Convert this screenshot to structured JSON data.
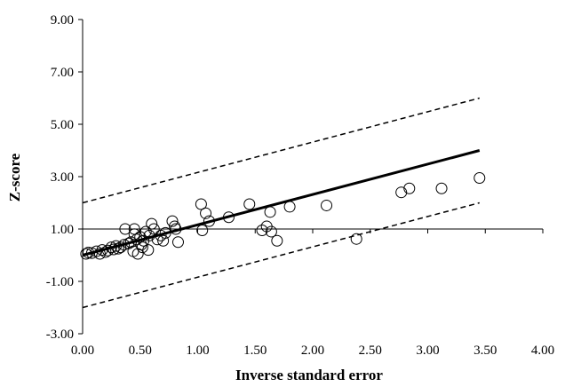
{
  "chart_data": {
    "type": "scatter",
    "xlabel": "Inverse standard error",
    "ylabel": "Z-score",
    "xlim": [
      0,
      4
    ],
    "ylim": [
      -3,
      9
    ],
    "x_ticks": [
      "0.00",
      "0.50",
      "1.00",
      "1.50",
      "2.00",
      "2.50",
      "3.00",
      "3.50",
      "4.00"
    ],
    "y_ticks": [
      "-3.00",
      "-1.00",
      "1.00",
      "3.00",
      "5.00",
      "7.00",
      "9.00"
    ],
    "x_tick_values": [
      0,
      0.5,
      1,
      1.5,
      2,
      2.5,
      3,
      3.5,
      4
    ],
    "y_tick_values": [
      -3,
      -1,
      1,
      3,
      5,
      7,
      9
    ],
    "x_axis_crosses_y_at": 1.0,
    "grid": false,
    "regression_line": {
      "style": "solid",
      "x": [
        0,
        3.45
      ],
      "y": [
        0,
        4.0
      ]
    },
    "upper_bound": {
      "style": "dashed",
      "x": [
        0,
        3.45
      ],
      "y": [
        2.0,
        6.0
      ]
    },
    "lower_bound": {
      "style": "dashed",
      "x": [
        0,
        3.45
      ],
      "y": [
        -2.0,
        2.0
      ]
    },
    "points": [
      {
        "x": 0.03,
        "y": 0.05
      },
      {
        "x": 0.05,
        "y": 0.1
      },
      {
        "x": 0.08,
        "y": 0.08
      },
      {
        "x": 0.12,
        "y": 0.15
      },
      {
        "x": 0.15,
        "y": 0.05
      },
      {
        "x": 0.17,
        "y": 0.2
      },
      {
        "x": 0.2,
        "y": 0.12
      },
      {
        "x": 0.22,
        "y": 0.18
      },
      {
        "x": 0.25,
        "y": 0.3
      },
      {
        "x": 0.27,
        "y": 0.22
      },
      {
        "x": 0.29,
        "y": 0.35
      },
      {
        "x": 0.31,
        "y": 0.25
      },
      {
        "x": 0.33,
        "y": 0.3
      },
      {
        "x": 0.36,
        "y": 0.4
      },
      {
        "x": 0.37,
        "y": 1.0
      },
      {
        "x": 0.4,
        "y": 0.45
      },
      {
        "x": 0.42,
        "y": 0.5
      },
      {
        "x": 0.44,
        "y": 0.15
      },
      {
        "x": 0.45,
        "y": 1.0
      },
      {
        "x": 0.45,
        "y": 0.8
      },
      {
        "x": 0.47,
        "y": 0.6
      },
      {
        "x": 0.48,
        "y": 0.05
      },
      {
        "x": 0.5,
        "y": 0.7
      },
      {
        "x": 0.51,
        "y": 0.4
      },
      {
        "x": 0.52,
        "y": 0.3
      },
      {
        "x": 0.53,
        "y": 0.55
      },
      {
        "x": 0.55,
        "y": 0.9
      },
      {
        "x": 0.57,
        "y": 0.2
      },
      {
        "x": 0.58,
        "y": 0.75
      },
      {
        "x": 0.6,
        "y": 1.2
      },
      {
        "x": 0.62,
        "y": 1.0
      },
      {
        "x": 0.65,
        "y": 0.6
      },
      {
        "x": 0.68,
        "y": 0.75
      },
      {
        "x": 0.7,
        "y": 0.55
      },
      {
        "x": 0.72,
        "y": 0.85
      },
      {
        "x": 0.78,
        "y": 1.3
      },
      {
        "x": 0.8,
        "y": 1.1
      },
      {
        "x": 0.81,
        "y": 1.0
      },
      {
        "x": 0.83,
        "y": 0.5
      },
      {
        "x": 1.03,
        "y": 1.95
      },
      {
        "x": 1.04,
        "y": 0.95
      },
      {
        "x": 1.07,
        "y": 1.6
      },
      {
        "x": 1.1,
        "y": 1.3
      },
      {
        "x": 1.27,
        "y": 1.45
      },
      {
        "x": 1.45,
        "y": 1.95
      },
      {
        "x": 1.56,
        "y": 0.95
      },
      {
        "x": 1.6,
        "y": 1.1
      },
      {
        "x": 1.63,
        "y": 1.65
      },
      {
        "x": 1.64,
        "y": 0.9
      },
      {
        "x": 1.69,
        "y": 0.55
      },
      {
        "x": 1.8,
        "y": 1.85
      },
      {
        "x": 2.12,
        "y": 1.9
      },
      {
        "x": 2.38,
        "y": 0.62
      },
      {
        "x": 2.77,
        "y": 2.4
      },
      {
        "x": 2.84,
        "y": 2.55
      },
      {
        "x": 3.12,
        "y": 2.55
      },
      {
        "x": 3.45,
        "y": 2.95
      }
    ]
  }
}
